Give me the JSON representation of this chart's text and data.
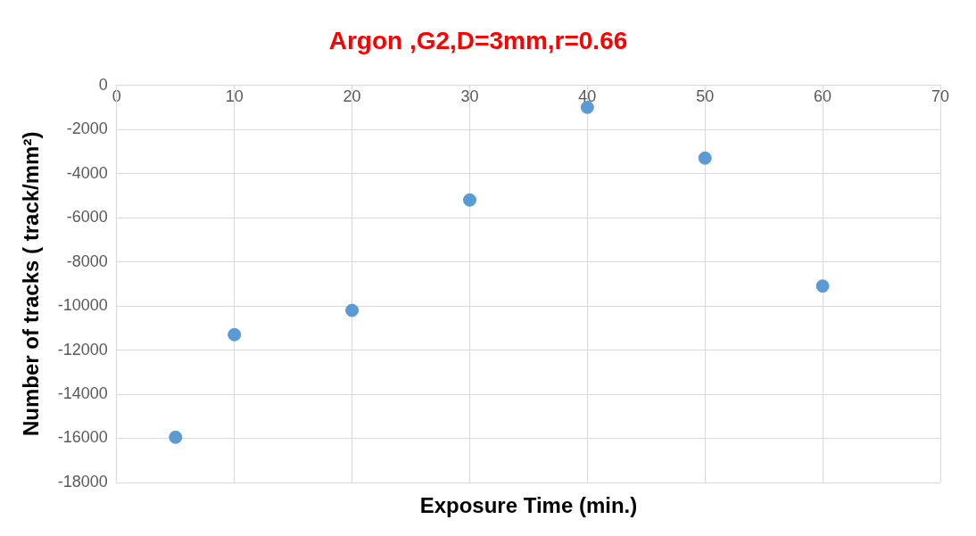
{
  "chart_data": {
    "type": "scatter",
    "title": "Argon ,G2,D=3mm,r=0.66",
    "xlabel": "Exposure Time (min.)",
    "ylabel": "Number of tracks ( track/mm²)",
    "x": [
      5,
      10,
      20,
      30,
      40,
      50,
      60
    ],
    "series": [
      {
        "color": "#5b9bd5",
        "values": [
          -15950,
          -11300,
          -10200,
          -5200,
          -1000,
          -3300,
          -9100
        ]
      }
    ],
    "xlim": [
      0,
      70
    ],
    "xticks": [
      0,
      10,
      20,
      30,
      40,
      50,
      60,
      70
    ],
    "ylim": [
      -18000,
      0
    ],
    "yticks": [
      -18000,
      -16000,
      -14000,
      -12000,
      -10000,
      -8000,
      -6000,
      -4000,
      -2000,
      0
    ],
    "grid": true,
    "legend": false,
    "marker": "circle"
  }
}
